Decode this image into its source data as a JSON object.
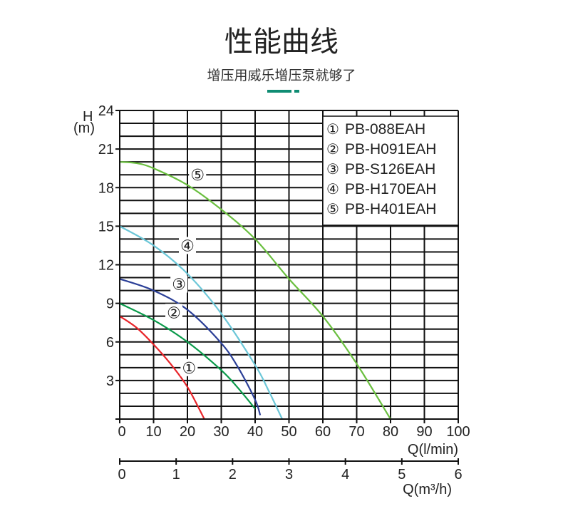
{
  "header": {
    "title": "性能曲线",
    "subtitle": "增压用威乐增压泵就够了",
    "accent_color": "#0f8c73"
  },
  "chart_data": {
    "type": "line",
    "ylabel_top": "H",
    "ylabel_unit": "(m)",
    "xlabel": "Q(l/min)",
    "x2label": "Q(m³/h)",
    "xlim": [
      0,
      100
    ],
    "ylim": [
      0,
      24
    ],
    "x_ticks": [
      0,
      10,
      20,
      30,
      40,
      50,
      60,
      70,
      80,
      90,
      100
    ],
    "y_ticks": [
      3,
      6,
      9,
      12,
      15,
      18,
      21,
      24
    ],
    "x2_ticks": [
      0,
      1,
      2,
      3,
      4,
      5,
      6
    ],
    "grid": true,
    "legend_placement": "top-right",
    "series": [
      {
        "name": "PB-088EAH",
        "marker": "①",
        "color": "#e8252a",
        "label_at": [
          20.5,
          4
        ],
        "points": [
          [
            0,
            8
          ],
          [
            5,
            7.1
          ],
          [
            10,
            5.8
          ],
          [
            15,
            4.3
          ],
          [
            20,
            2.5
          ],
          [
            25,
            0
          ]
        ]
      },
      {
        "name": "PB-H091EAH",
        "marker": "②",
        "color": "#0a9a4a",
        "label_at": [
          16,
          8.3
        ],
        "points": [
          [
            0,
            9
          ],
          [
            10,
            7.7
          ],
          [
            20,
            6
          ],
          [
            30,
            3.8
          ],
          [
            35,
            2.4
          ],
          [
            40,
            0.8
          ]
        ]
      },
      {
        "name": "PB-S126EAH",
        "marker": "③",
        "color": "#2b3f97",
        "label_at": [
          17.5,
          10.5
        ],
        "points": [
          [
            0,
            10.9
          ],
          [
            10,
            10
          ],
          [
            20,
            8.5
          ],
          [
            30,
            5.9
          ],
          [
            35,
            4
          ],
          [
            40,
            1.5
          ],
          [
            41.5,
            0.3
          ]
        ]
      },
      {
        "name": "PB-H170EAH",
        "marker": "④",
        "color": "#6cc7d8",
        "label_at": [
          20,
          13.5
        ],
        "points": [
          [
            0,
            15
          ],
          [
            10,
            13.5
          ],
          [
            20,
            11.3
          ],
          [
            30,
            8.2
          ],
          [
            40,
            4.2
          ],
          [
            44,
            2.2
          ],
          [
            48,
            0
          ]
        ]
      },
      {
        "name": "PB-H401EAH",
        "marker": "⑤",
        "color": "#6abf3f",
        "label_at": [
          23,
          19
        ],
        "points": [
          [
            0,
            20
          ],
          [
            5,
            19.9
          ],
          [
            10,
            19.5
          ],
          [
            20,
            18.2
          ],
          [
            30,
            16.3
          ],
          [
            40,
            14
          ],
          [
            50,
            10.9
          ],
          [
            60,
            8
          ],
          [
            70,
            4.3
          ],
          [
            80,
            0
          ]
        ]
      }
    ]
  }
}
